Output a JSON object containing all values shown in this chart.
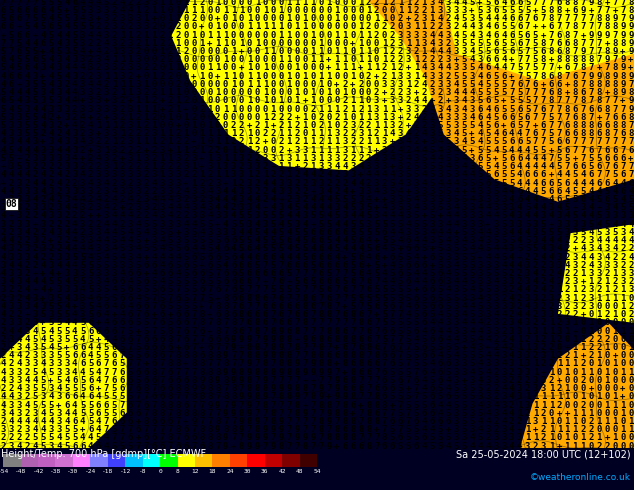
{
  "title_left": "Height/Temp. 700 hPa [gdmp][°C] ECMWF",
  "title_right": "Sa 25-05-2024 18:00 UTC (12+102)",
  "credit": "©weatheronline.co.uk",
  "colorbar_values": [
    -54,
    -48,
    -42,
    -38,
    -30,
    -24,
    -18,
    -12,
    -8,
    0,
    8,
    12,
    18,
    24,
    30,
    36,
    42,
    48,
    54
  ],
  "colorbar_colors": [
    "#808080",
    "#b060b0",
    "#c060c0",
    "#d070d0",
    "#ff80ff",
    "#8080ff",
    "#4040ff",
    "#00c0ff",
    "#00ffff",
    "#00ff00",
    "#ffff00",
    "#ffc000",
    "#ff8000",
    "#ff4000",
    "#ff0000",
    "#c00000",
    "#800000",
    "#400000"
  ],
  "green_bg": "#00dd00",
  "yellow_color": "#ffff00",
  "orange_color": "#ffaa00",
  "bottom_bg": "#000022",
  "credit_color": "#00aaff",
  "figsize": [
    6.34,
    4.9
  ],
  "dpi": 100,
  "char_rows": 55,
  "char_cols": 80,
  "char_fontsize": 6.5,
  "grid_color": "#000000",
  "text_color_green": "#000000",
  "text_color_yellow": "#000000"
}
